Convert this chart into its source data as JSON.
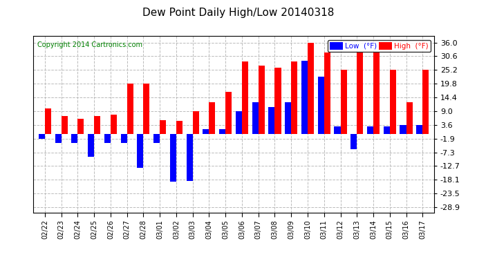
{
  "title": "Dew Point Daily High/Low 20140318",
  "copyright": "Copyright 2014 Cartronics.com",
  "dates": [
    "02/22",
    "02/23",
    "02/24",
    "02/25",
    "02/26",
    "02/27",
    "02/28",
    "03/01",
    "03/02",
    "03/03",
    "03/04",
    "03/05",
    "03/06",
    "03/07",
    "03/08",
    "03/09",
    "03/10",
    "03/11",
    "03/12",
    "03/13",
    "03/14",
    "03/15",
    "03/16",
    "03/17"
  ],
  "high_values": [
    10.0,
    7.0,
    6.0,
    7.0,
    7.5,
    19.8,
    19.8,
    5.5,
    5.0,
    9.0,
    12.5,
    16.5,
    28.5,
    27.0,
    26.0,
    28.5,
    36.0,
    32.0,
    25.2,
    32.0,
    32.0,
    25.2,
    12.5,
    25.2
  ],
  "low_values": [
    -1.9,
    -3.6,
    -3.6,
    -9.0,
    -3.6,
    -3.6,
    -13.5,
    -3.6,
    -19.0,
    -18.5,
    1.8,
    1.8,
    9.0,
    12.5,
    10.5,
    12.5,
    28.9,
    22.5,
    3.0,
    -6.0,
    3.0,
    3.0,
    3.6,
    3.6
  ],
  "high_color": "#FF0000",
  "low_color": "#0000FF",
  "background_color": "#FFFFFF",
  "plot_bg_color": "#FFFFFF",
  "grid_color": "#BBBBBB",
  "yticks": [
    -28.9,
    -23.5,
    -18.1,
    -12.7,
    -7.3,
    -1.9,
    3.6,
    9.0,
    14.4,
    19.8,
    25.2,
    30.6,
    36.0
  ],
  "ylim": [
    -31.0,
    38.5
  ],
  "bar_width": 0.38,
  "legend_low_label": "Low  (°F)",
  "legend_high_label": "High  (°F)"
}
